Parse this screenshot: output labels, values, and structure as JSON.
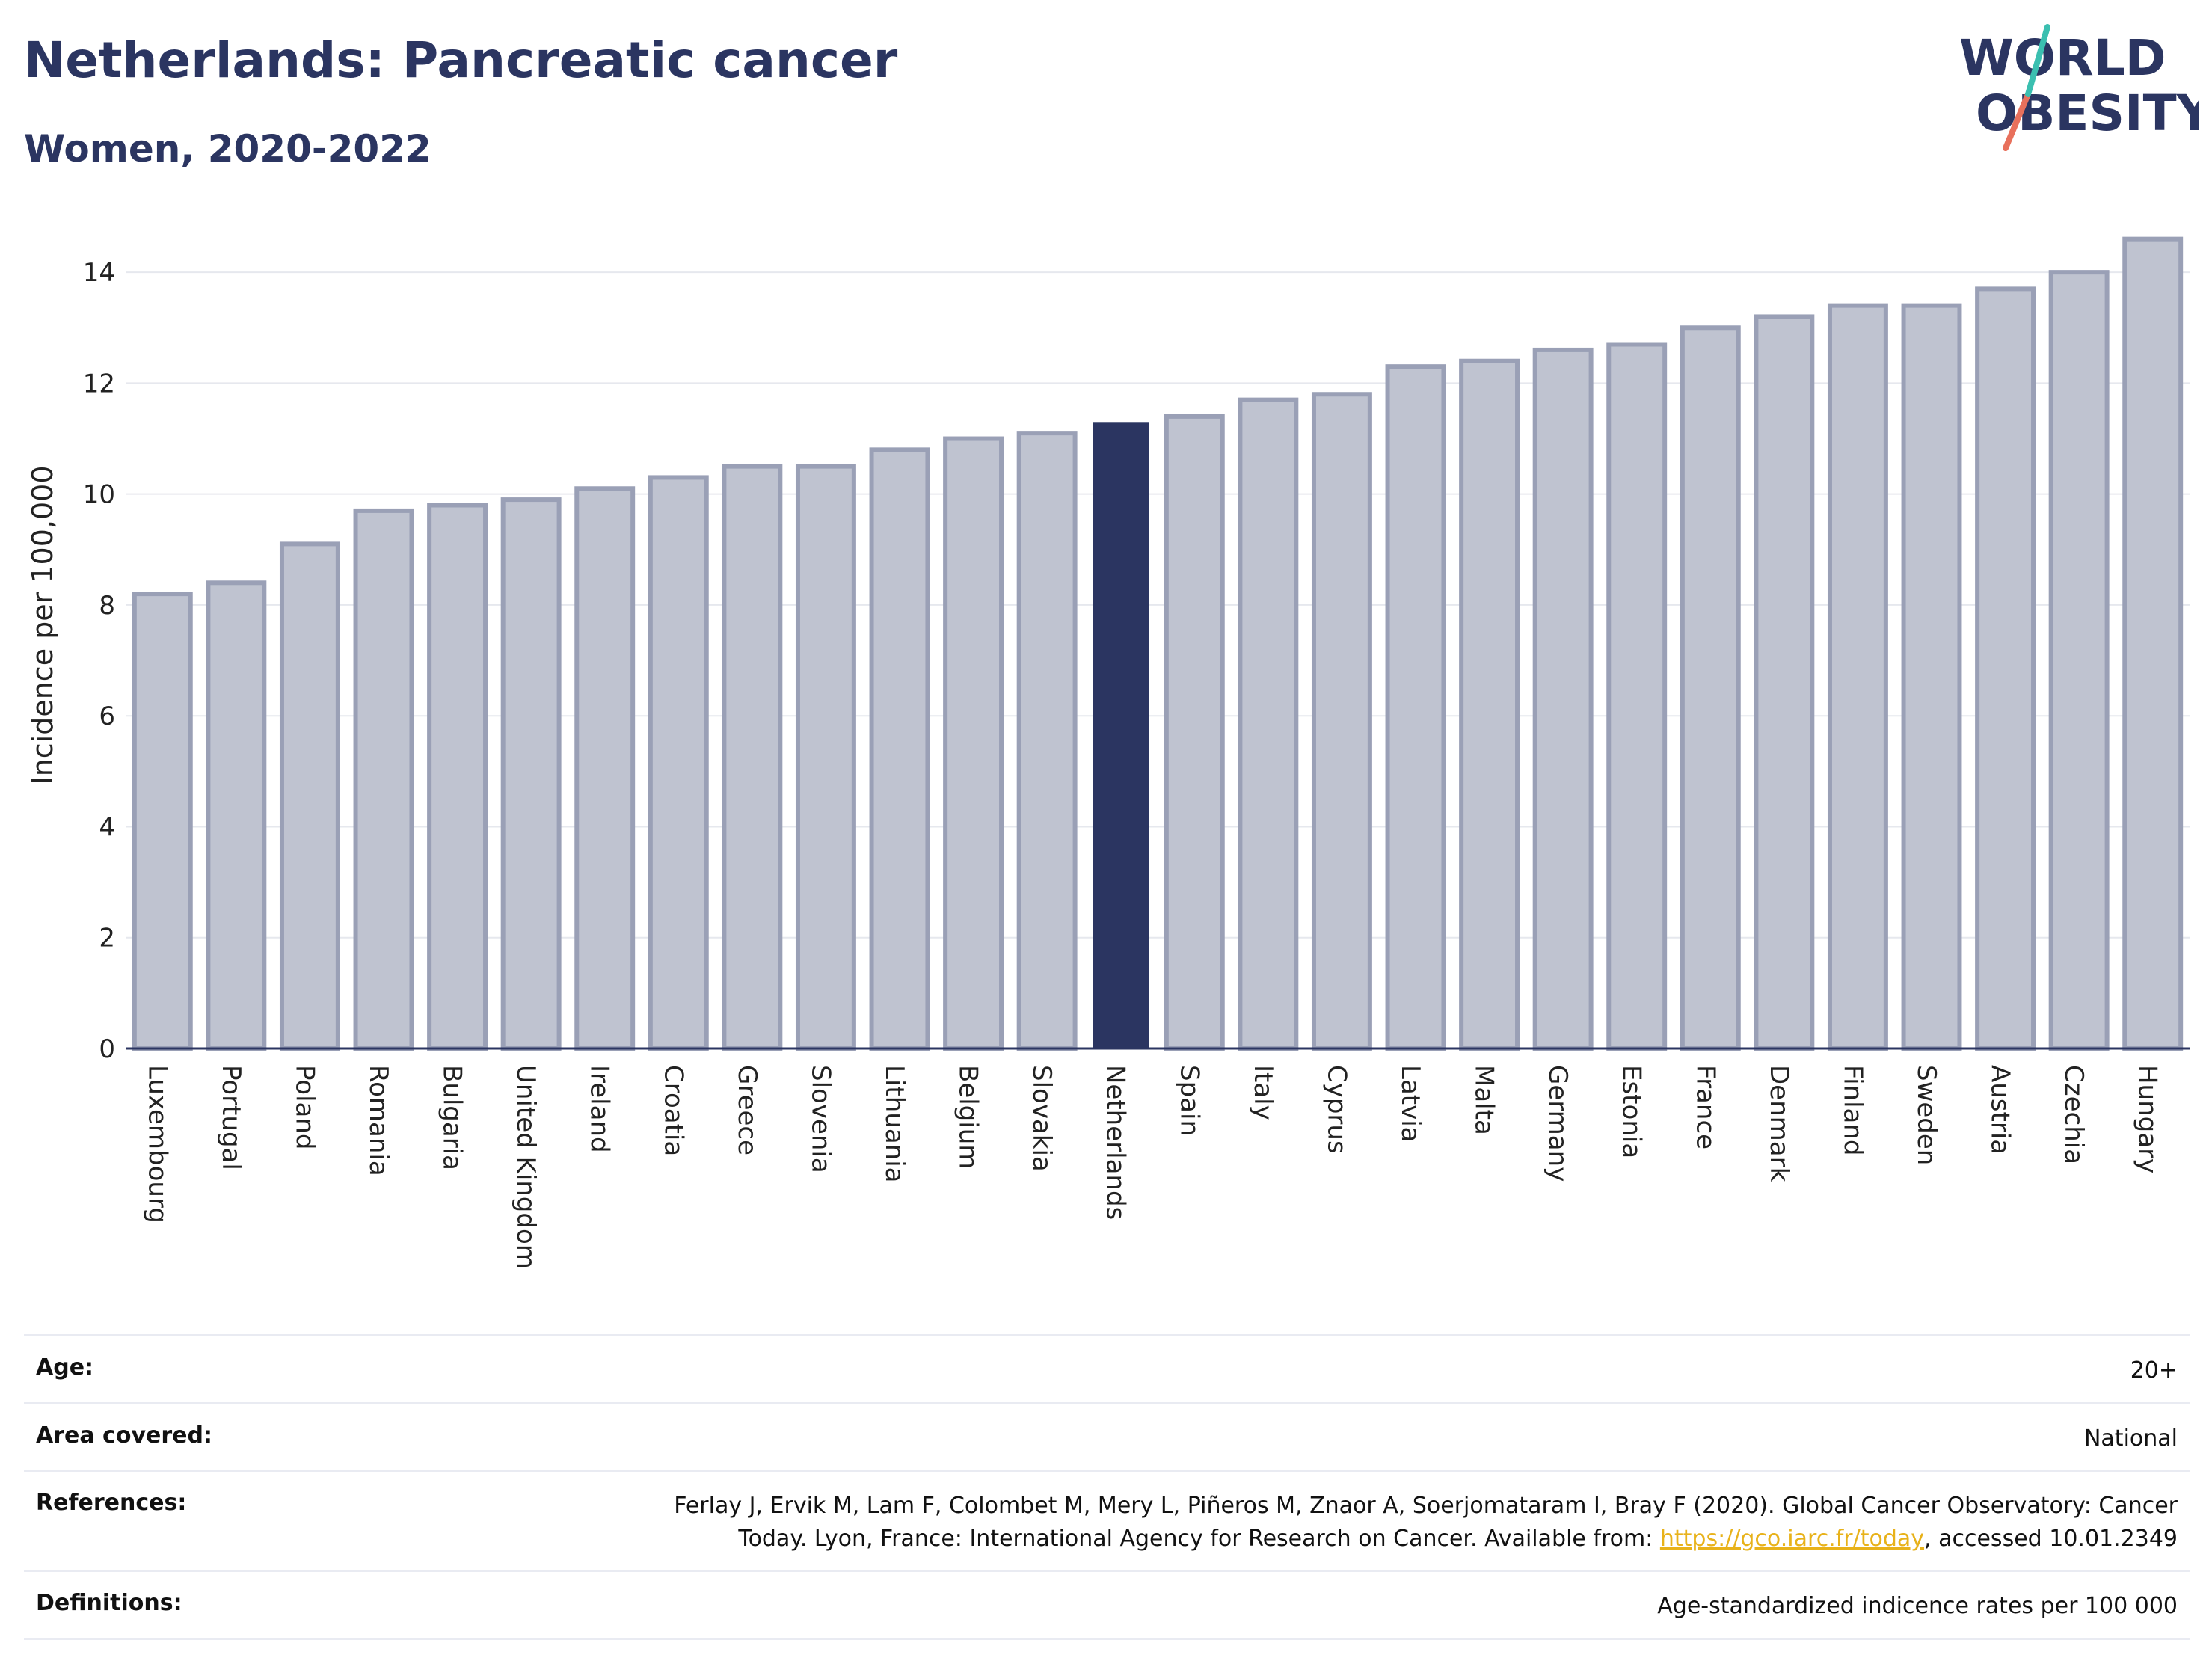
{
  "header": {
    "title": "Netherlands: Pancreatic cancer",
    "subtitle": "Women, 2020-2022"
  },
  "logo": {
    "line1": "WORLD",
    "line2": "OBESITY",
    "colors": {
      "text": "#2b3561",
      "slash_top": "#3bbfb0",
      "slash_bottom": "#e8705c"
    }
  },
  "chart_data": {
    "type": "bar",
    "ylabel": "Incidence per 100,000",
    "xlabel": "",
    "ylim": [
      0,
      15
    ],
    "yticks": [
      0,
      2,
      4,
      6,
      8,
      10,
      12,
      14
    ],
    "grid": true,
    "highlight": "Netherlands",
    "colors": {
      "bar": "#bfc3d0",
      "bar_edge": "#9aa0b6",
      "highlight": "#2b3561",
      "grid": "#e6e8ee"
    },
    "categories": [
      "Luxembourg",
      "Portugal",
      "Poland",
      "Romania",
      "Bulgaria",
      "United Kingdom",
      "Ireland",
      "Croatia",
      "Greece",
      "Slovenia",
      "Lithuania",
      "Belgium",
      "Slovakia",
      "Netherlands",
      "Spain",
      "Italy",
      "Cyprus",
      "Latvia",
      "Malta",
      "Germany",
      "Estonia",
      "France",
      "Denmark",
      "Finland",
      "Sweden",
      "Austria",
      "Czechia",
      "Hungary"
    ],
    "values": [
      8.2,
      8.4,
      9.1,
      9.7,
      9.8,
      9.9,
      10.1,
      10.3,
      10.5,
      10.5,
      10.8,
      11.0,
      11.1,
      11.3,
      11.4,
      11.7,
      11.8,
      12.3,
      12.4,
      12.6,
      12.7,
      13.0,
      13.2,
      13.4,
      13.4,
      13.7,
      14.0,
      14.6
    ]
  },
  "info": {
    "age": {
      "label": "Age:",
      "value": "20+"
    },
    "area": {
      "label": "Area covered:",
      "value": "National"
    },
    "references": {
      "label": "References:",
      "line1": "Ferlay J, Ervik M, Lam F, Colombet M, Mery L, Piñeros M, Znaor A, Soerjomataram I, Bray F (2020). Global Cancer Observatory: Cancer",
      "line2_prefix": "Today. Lyon, France: International Agency for Research on Cancer. Available from: ",
      "link": "https://gco.iarc.fr/today",
      "line2_suffix": ", accessed 10.01.2349"
    },
    "definitions": {
      "label": "Definitions:",
      "value": "Age-standardized indicence rates per 100 000"
    }
  }
}
